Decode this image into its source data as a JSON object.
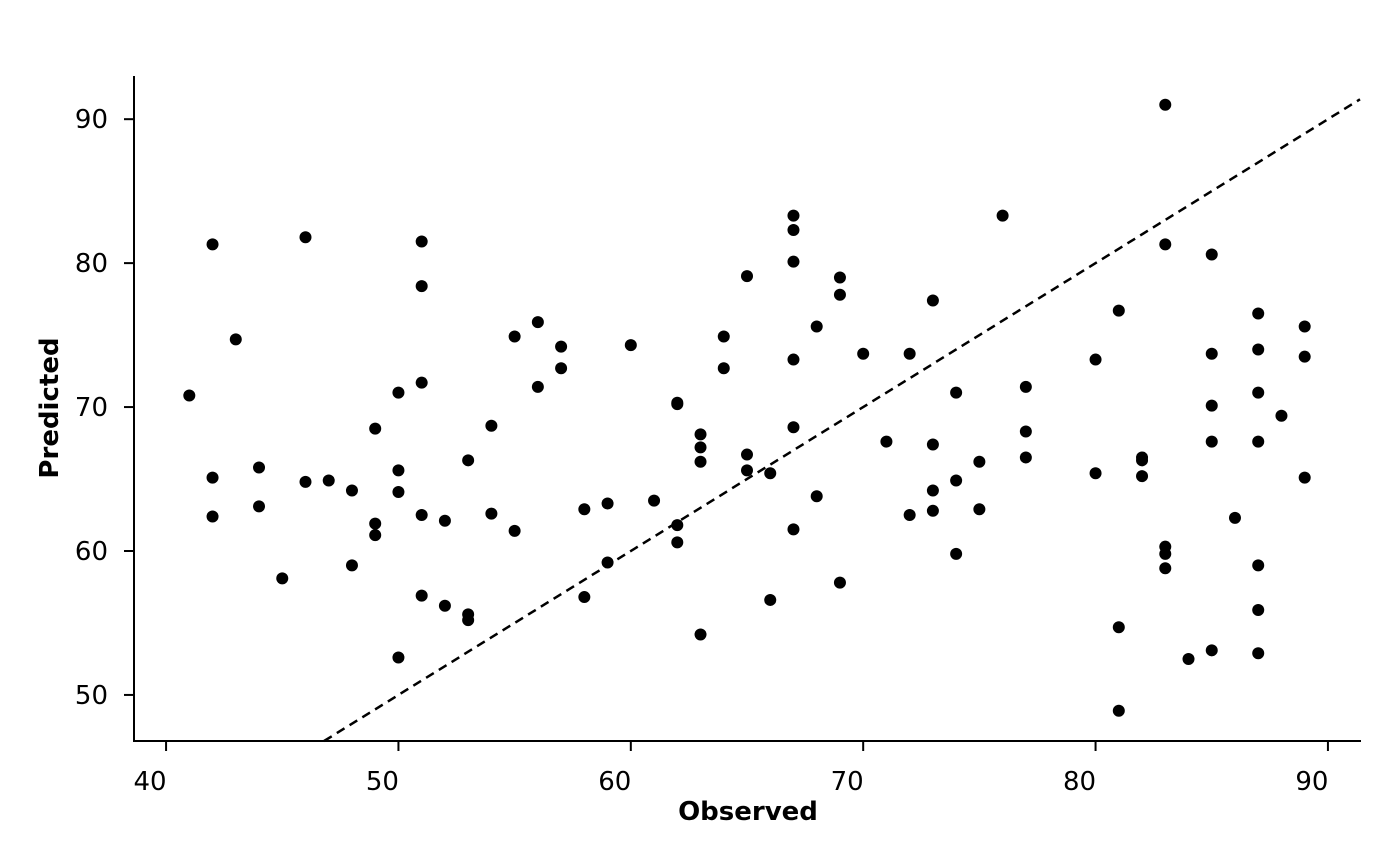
{
  "chart_data": {
    "type": "scatter",
    "x_label": "Observed",
    "y_label": "Predicted",
    "color": "#000000",
    "identity_line": true,
    "xlim": [
      38.62,
      91.38
    ],
    "ylim": [
      46.8,
      93.0
    ],
    "xticks": [
      40,
      50,
      60,
      70,
      80,
      90
    ],
    "yticks": [
      50,
      60,
      70,
      80,
      90
    ],
    "x": [
      41,
      42,
      42,
      42,
      43,
      44,
      44,
      45,
      46,
      46,
      47,
      48,
      48,
      49,
      49,
      49,
      50,
      50,
      50,
      50,
      51,
      51,
      51,
      51,
      51,
      52,
      52,
      53,
      53,
      53,
      54,
      54,
      55,
      55,
      56,
      56,
      57,
      57,
      58,
      58,
      59,
      59,
      60,
      61,
      62,
      62,
      62,
      62,
      63,
      63,
      63,
      63,
      64,
      64,
      65,
      65,
      65,
      66,
      66,
      67,
      67,
      67,
      67,
      67,
      67,
      68,
      68,
      69,
      69,
      69,
      70,
      71,
      72,
      72,
      73,
      73,
      73,
      73,
      74,
      74,
      74,
      75,
      75,
      76,
      77,
      77,
      77,
      80,
      80,
      81,
      81,
      81,
      82,
      82,
      82,
      83,
      83,
      83,
      83,
      83,
      84,
      85,
      85,
      85,
      85,
      85,
      86,
      87,
      87,
      87,
      87,
      87,
      87,
      87,
      88,
      89,
      89,
      89
    ],
    "values": [
      70.8,
      81.3,
      65.1,
      62.4,
      74.7,
      65.8,
      63.1,
      58.1,
      81.8,
      64.8,
      64.9,
      64.2,
      59.0,
      68.5,
      61.9,
      61.1,
      71.0,
      65.6,
      64.1,
      52.6,
      81.5,
      78.4,
      71.7,
      62.5,
      56.9,
      62.1,
      56.2,
      66.3,
      55.6,
      55.2,
      68.7,
      62.6,
      74.9,
      61.4,
      75.9,
      71.4,
      74.2,
      72.7,
      62.9,
      56.8,
      63.3,
      59.2,
      74.3,
      63.5,
      70.3,
      70.2,
      61.8,
      60.6,
      68.1,
      67.2,
      66.2,
      54.2,
      74.9,
      72.7,
      79.1,
      66.7,
      65.6,
      65.4,
      56.6,
      83.3,
      82.3,
      80.1,
      73.3,
      68.6,
      61.5,
      75.6,
      63.8,
      79.0,
      77.8,
      57.8,
      73.7,
      67.6,
      73.7,
      62.5,
      77.4,
      67.4,
      64.2,
      62.8,
      71.0,
      64.9,
      59.8,
      66.2,
      62.9,
      83.3,
      71.4,
      68.3,
      66.5,
      73.3,
      65.4,
      76.7,
      54.7,
      48.9,
      66.5,
      66.3,
      65.2,
      91.0,
      81.3,
      60.3,
      59.8,
      58.8,
      52.5,
      80.6,
      73.7,
      70.1,
      67.6,
      53.1,
      62.3,
      76.5,
      74.0,
      71.0,
      67.6,
      59.0,
      55.9,
      52.9,
      69.4,
      75.6,
      73.5,
      65.1
    ]
  }
}
